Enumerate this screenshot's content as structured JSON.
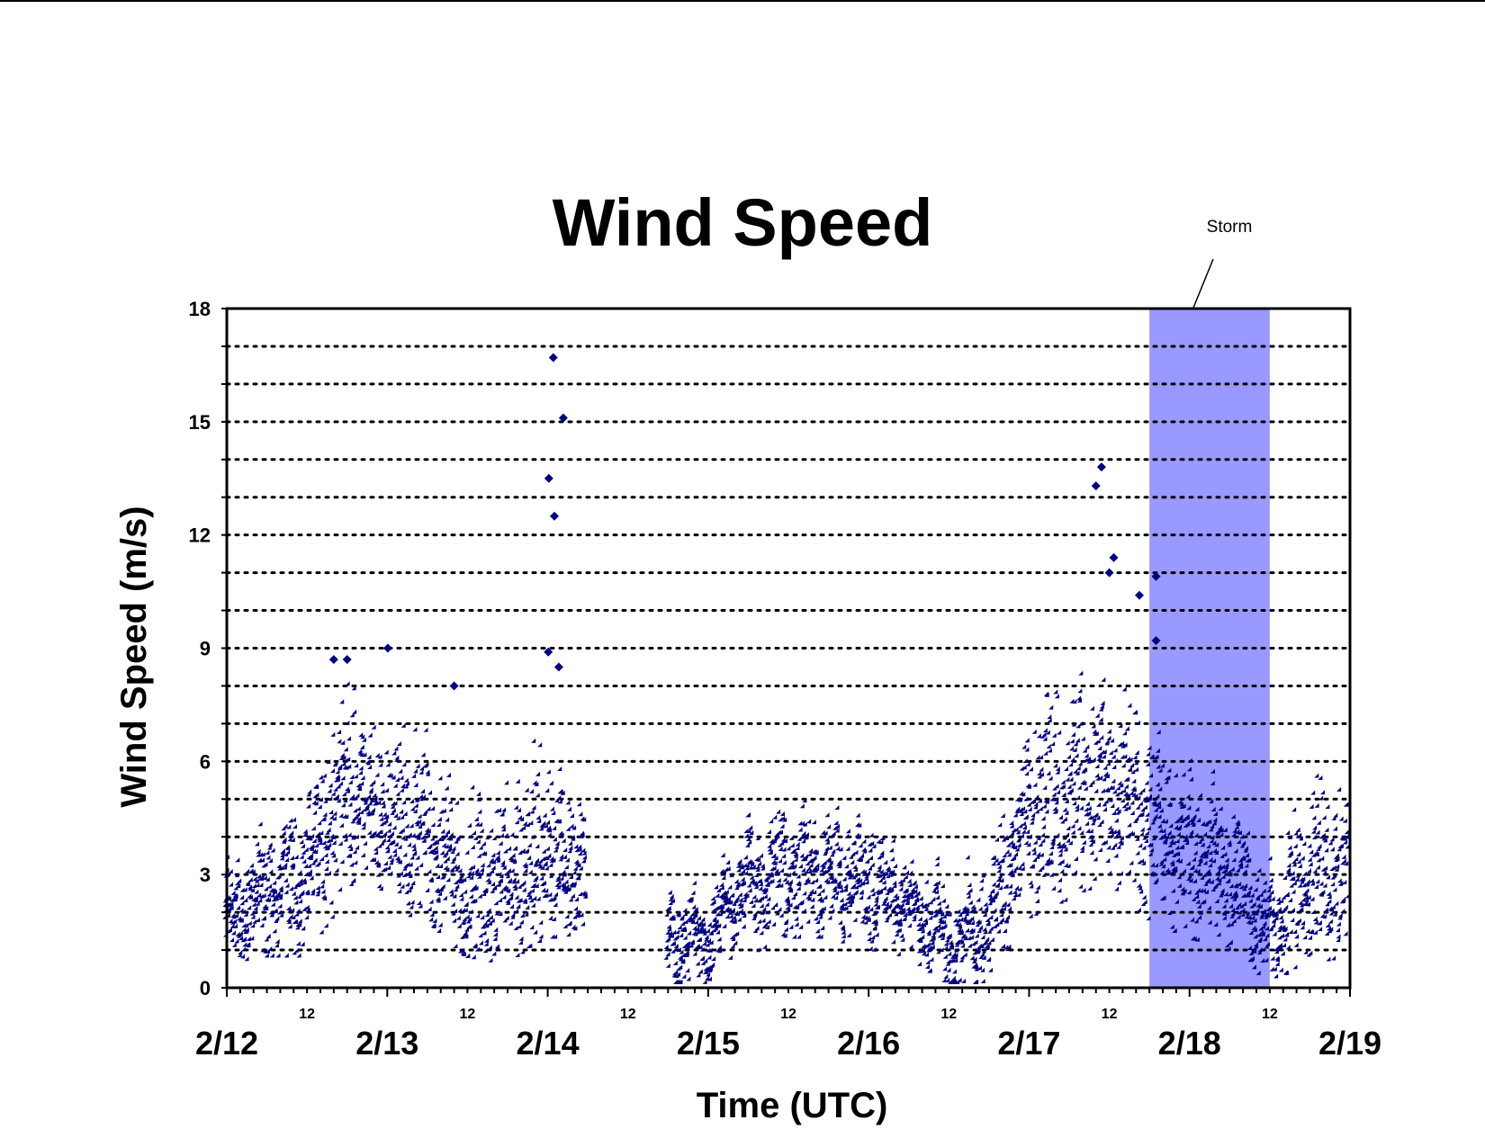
{
  "chart_data": {
    "type": "scatter",
    "title": "Wind Speed",
    "xlabel": "Time (UTC)",
    "ylabel": "Wind Speed (m/s)",
    "ylim": [
      0,
      18
    ],
    "y_ticks": [
      0,
      3,
      6,
      9,
      12,
      15,
      18
    ],
    "grid": "horizontal dotted lines every 1 m/s",
    "x_range_days": [
      "2/12",
      "2/19"
    ],
    "x_date_labels": [
      "2/12",
      "2/13",
      "2/14",
      "2/15",
      "2/16",
      "2/17",
      "2/18",
      "2/19"
    ],
    "x_hour_label": "12",
    "marker": "diamond",
    "series_color": "#000080",
    "highlight": {
      "label": "Storm",
      "color": "#9999ff",
      "x_start": "2/17 18:00",
      "x_end": "2/18 12:00"
    },
    "series": [
      {
        "envelope_hourly": [
          {
            "t": "2/12 00:00",
            "low": 0.8,
            "mid": 1.7,
            "high": 2.8
          },
          {
            "t": "2/12 06:00",
            "low": 1.0,
            "mid": 2.5,
            "high": 4.5
          },
          {
            "t": "2/12 12:00",
            "low": 1.0,
            "mid": 2.8,
            "high": 4.8
          },
          {
            "t": "2/12 18:00",
            "low": 2.5,
            "mid": 5.0,
            "high": 7.8
          },
          {
            "t": "2/13 00:00",
            "low": 2.2,
            "mid": 4.2,
            "high": 6.5
          },
          {
            "t": "2/13 06:00",
            "low": 2.0,
            "mid": 4.0,
            "high": 6.3
          },
          {
            "t": "2/13 12:00",
            "low": 1.0,
            "mid": 2.5,
            "high": 5.0
          },
          {
            "t": "2/13 18:00",
            "low": 0.8,
            "mid": 3.0,
            "high": 5.5
          },
          {
            "t": "2/14 00:00",
            "low": 1.5,
            "mid": 3.5,
            "high": 6.2
          },
          {
            "t": "2/14 06:00",
            "low": 1.5,
            "mid": 3.0,
            "high": 5.0
          },
          {
            "t": "2/14 12:00",
            "gap": true
          },
          {
            "t": "2/14 18:00",
            "low": 0.2,
            "mid": 1.2,
            "high": 2.5
          },
          {
            "t": "2/15 00:00",
            "low": 0.3,
            "mid": 1.3,
            "high": 2.2
          },
          {
            "t": "2/15 06:00",
            "low": 1.0,
            "mid": 2.8,
            "high": 4.0
          },
          {
            "t": "2/15 12:00",
            "low": 1.5,
            "mid": 3.0,
            "high": 4.5
          },
          {
            "t": "2/15 18:00",
            "low": 1.5,
            "mid": 3.0,
            "high": 4.3
          },
          {
            "t": "2/16 00:00",
            "low": 1.2,
            "mid": 2.8,
            "high": 4.0
          },
          {
            "t": "2/16 06:00",
            "low": 1.0,
            "mid": 2.2,
            "high": 3.2
          },
          {
            "t": "2/16 12:00",
            "low": 0.3,
            "mid": 1.2,
            "high": 2.8
          },
          {
            "t": "2/16 18:00",
            "low": 0.3,
            "mid": 1.5,
            "high": 3.0
          },
          {
            "t": "2/17 00:00",
            "low": 2.0,
            "mid": 4.5,
            "high": 7.0
          },
          {
            "t": "2/17 06:00",
            "low": 2.5,
            "mid": 5.0,
            "high": 8.0
          },
          {
            "t": "2/17 12:00",
            "low": 3.0,
            "mid": 5.5,
            "high": 8.0
          },
          {
            "t": "2/17 18:00",
            "low": 2.0,
            "mid": 4.5,
            "high": 6.5
          },
          {
            "t": "2/18 00:00",
            "low": 1.5,
            "mid": 3.5,
            "high": 5.5
          },
          {
            "t": "2/18 06:00",
            "low": 1.2,
            "mid": 3.0,
            "high": 5.0
          },
          {
            "t": "2/18 12:00",
            "low": 0.3,
            "mid": 1.5,
            "high": 3.0
          },
          {
            "t": "2/18 18:00",
            "low": 0.8,
            "mid": 3.0,
            "high": 5.0
          },
          {
            "t": "2/19 00:00",
            "low": 1.0,
            "mid": 3.0,
            "high": 5.5
          }
        ],
        "outliers": [
          {
            "t": "2/14 00:50",
            "y": 16.7
          },
          {
            "t": "2/14 02:20",
            "y": 15.1
          },
          {
            "t": "2/14 00:10",
            "y": 13.5
          },
          {
            "t": "2/14 01:00",
            "y": 12.5
          },
          {
            "t": "2/14 00:05",
            "y": 8.9
          },
          {
            "t": "2/14 01:40",
            "y": 8.5
          },
          {
            "t": "2/17 10:50",
            "y": 13.8
          },
          {
            "t": "2/17 10:00",
            "y": 13.3
          },
          {
            "t": "2/17 12:40",
            "y": 11.4
          },
          {
            "t": "2/17 12:00",
            "y": 11.0
          },
          {
            "t": "2/17 19:00",
            "y": 10.9
          },
          {
            "t": "2/17 16:30",
            "y": 10.4
          },
          {
            "t": "2/13 00:05",
            "y": 9.0
          },
          {
            "t": "2/17 19:00",
            "y": 9.2
          },
          {
            "t": "2/12 16:00",
            "y": 8.7
          },
          {
            "t": "2/12 18:00",
            "y": 8.7
          },
          {
            "t": "2/13 10:00",
            "y": 8.0
          }
        ]
      }
    ]
  }
}
